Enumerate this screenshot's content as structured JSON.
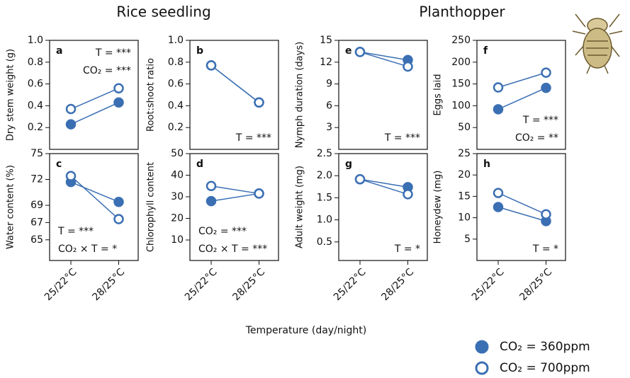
{
  "group_titles": [
    "Rice seedling",
    "Planthopper"
  ],
  "x_label": "Temperature (day/night)",
  "chart_data": [
    {
      "type": "line",
      "panel": "a",
      "y_label": "Dry stem weight (g)",
      "ylim": [
        0,
        1.0
      ],
      "yticks": [
        0.2,
        0.4,
        0.6,
        0.8,
        {
          "value": 1.0,
          "label": "1.0"
        }
      ],
      "annotations": [
        "T = ***",
        "CO₂ = ***"
      ],
      "annotation_corner": "top-right",
      "series": [
        {
          "name": "CO₂ = 360ppm",
          "color": "#3b6fb3",
          "filled": true,
          "values": [
            0.23,
            0.43
          ]
        },
        {
          "name": "CO₂ = 700ppm",
          "color": "#3b6fb3",
          "filled": false,
          "values": [
            0.37,
            0.56
          ]
        }
      ]
    },
    {
      "type": "line",
      "panel": "b",
      "y_label": "Root:shoot ratio",
      "ylim": [
        0,
        1.0
      ],
      "yticks": [
        0.2,
        0.4,
        0.6,
        0.8,
        {
          "value": 1.0,
          "label": "1.0"
        }
      ],
      "annotations": [
        "T = ***"
      ],
      "annotation_corner": "bottom-right",
      "series": [
        {
          "name": "CO₂ = 360ppm",
          "color": "#3b6fb3",
          "filled": true,
          "values": [
            0.77,
            0.43
          ]
        },
        {
          "name": "CO₂ = 700ppm",
          "color": "#3b6fb3",
          "filled": false,
          "values": [
            0.77,
            0.43
          ]
        }
      ]
    },
    {
      "type": "line",
      "panel": "e",
      "y_label": "Nymph duration (days)",
      "ylim": [
        0,
        15
      ],
      "yticks": [
        3,
        6,
        9,
        12,
        15
      ],
      "annotations": [
        "T = ***"
      ],
      "annotation_corner": "bottom-right",
      "series": [
        {
          "name": "CO₂ = 360ppm",
          "color": "#3b6fb3",
          "filled": true,
          "values": [
            13.4,
            12.3
          ]
        },
        {
          "name": "CO₂ = 700ppm",
          "color": "#3b6fb3",
          "filled": false,
          "values": [
            13.4,
            11.4
          ]
        }
      ]
    },
    {
      "type": "line",
      "panel": "f",
      "y_label": "Eggs laid",
      "ylim": [
        0,
        250
      ],
      "yticks": [
        50,
        100,
        150,
        200,
        250
      ],
      "annotations": [
        "T = ***",
        "CO₂ = **"
      ],
      "annotation_corner": "bottom-right",
      "series": [
        {
          "name": "CO₂ = 360ppm",
          "color": "#3b6fb3",
          "filled": true,
          "values": [
            92,
            141
          ]
        },
        {
          "name": "CO₂ = 700ppm",
          "color": "#3b6fb3",
          "filled": false,
          "values": [
            142,
            176
          ]
        }
      ]
    },
    {
      "type": "line",
      "panel": "c",
      "y_label": "Water content (%)",
      "ylim": [
        62.6,
        75
      ],
      "yticks": [
        65,
        67,
        69,
        72,
        75
      ],
      "annotations": [
        "T = ***",
        "CO₂ × T = *"
      ],
      "annotation_corner": "bottom-left",
      "categories": [
        "25/22°C",
        "28/25°C"
      ],
      "series": [
        {
          "name": "CO₂ = 360ppm",
          "color": "#3b6fb3",
          "filled": true,
          "values": [
            71.7,
            69.4
          ]
        },
        {
          "name": "CO₂ = 700ppm",
          "color": "#3b6fb3",
          "filled": false,
          "values": [
            72.4,
            67.4
          ]
        }
      ]
    },
    {
      "type": "line",
      "panel": "d",
      "y_label": "Chlorophyll content",
      "ylim": [
        0.5,
        50
      ],
      "yticks": [
        10,
        20,
        30,
        40,
        50
      ],
      "annotations": [
        "CO₂ = ***",
        "CO₂ × T = ***"
      ],
      "annotation_corner": "bottom-left",
      "categories": [
        "25/22°C",
        "28/25°C"
      ],
      "series": [
        {
          "name": "CO₂ = 360ppm",
          "color": "#3b6fb3",
          "filled": true,
          "values": [
            28,
            31.5
          ]
        },
        {
          "name": "CO₂ = 700ppm",
          "color": "#3b6fb3",
          "filled": false,
          "values": [
            35,
            31.5
          ]
        }
      ]
    },
    {
      "type": "line",
      "panel": "g",
      "y_label": "Adult weight (mg)",
      "ylim": [
        0.08,
        2.5
      ],
      "yticks": [
        0.5,
        {
          "value": 1.0,
          "label": "1.0"
        },
        1.5,
        {
          "value": 2.0,
          "label": "2.0"
        },
        2.5
      ],
      "annotations": [
        "T = *"
      ],
      "annotation_corner": "bottom-right",
      "categories": [
        "25/22°C",
        "28/25°C"
      ],
      "series": [
        {
          "name": "CO₂ = 360ppm",
          "color": "#3b6fb3",
          "filled": true,
          "values": [
            1.92,
            1.74
          ]
        },
        {
          "name": "CO₂ = 700ppm",
          "color": "#3b6fb3",
          "filled": false,
          "values": [
            1.92,
            1.58
          ]
        }
      ]
    },
    {
      "type": "line",
      "panel": "h",
      "y_label": "Honeydew (mg)",
      "ylim": [
        0,
        25
      ],
      "yticks": [
        5,
        10,
        15,
        20,
        25
      ],
      "annotations": [
        "T = *"
      ],
      "annotation_corner": "bottom-right",
      "categories": [
        "25/22°C",
        "28/25°C"
      ],
      "series": [
        {
          "name": "CO₂ = 360ppm",
          "color": "#3b6fb3",
          "filled": true,
          "values": [
            12.5,
            9.2
          ]
        },
        {
          "name": "CO₂ = 700ppm",
          "color": "#3b6fb3",
          "filled": false,
          "values": [
            15.8,
            10.8
          ]
        }
      ]
    }
  ]
}
